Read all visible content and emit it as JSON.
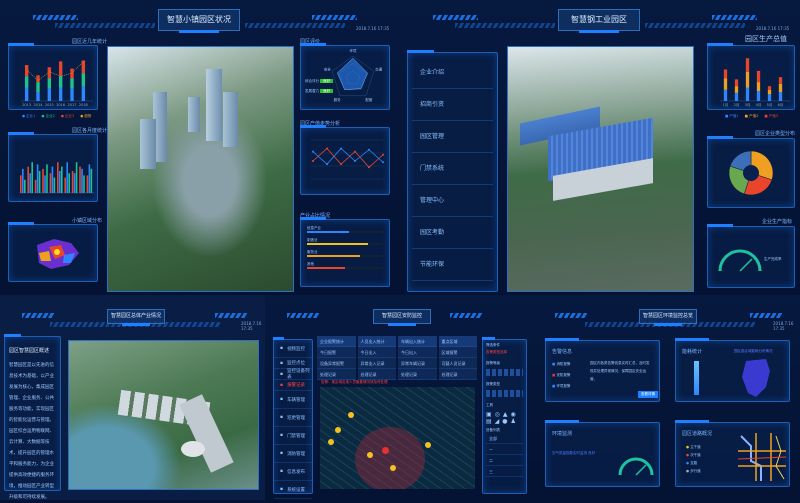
{
  "colors": {
    "accent": "#1e7fff",
    "background": "#041233",
    "blue": "#2e86ff",
    "green": "#1ec28b",
    "red": "#e8452c",
    "orange": "#f0a020"
  },
  "q1": {
    "title": "智慧小镇园区状况",
    "date": "2018.7.16 17:35",
    "chart1": {
      "title": "园区近几年统计",
      "legend": [
        "企业1",
        "企业2",
        "企业3",
        "趋势"
      ],
      "type": "bar",
      "categories": [
        "2013",
        "2014",
        "2015",
        "2016",
        "2017",
        "2018"
      ],
      "series": [
        {
          "name": "企业1",
          "values": [
            30,
            20,
            28,
            30,
            28,
            32
          ]
        },
        {
          "name": "企业2",
          "values": [
            25,
            22,
            22,
            26,
            22,
            30
          ]
        },
        {
          "name": "企业3",
          "values": [
            25,
            15,
            25,
            32,
            22,
            28
          ]
        }
      ],
      "line": [
        70,
        45,
        65,
        55,
        62,
        88
      ]
    },
    "chart2": {
      "title": "园区各月度统计",
      "type": "bar",
      "categories": [
        "1",
        "2",
        "3",
        "4",
        "5",
        "6",
        "7",
        "8",
        "9",
        "10"
      ],
      "series": [
        {
          "values": [
            40,
            60,
            30,
            55,
            45,
            70,
            35,
            50,
            60,
            40
          ]
        },
        {
          "values": [
            55,
            45,
            65,
            40,
            60,
            50,
            70,
            45,
            55,
            65
          ]
        },
        {
          "values": [
            30,
            70,
            50,
            65,
            35,
            60,
            45,
            70,
            40,
            55
          ]
        }
      ]
    },
    "map_title": "小镇区域分布",
    "radar": {
      "title": "园区评价",
      "labels": [
        "环境",
        "交通",
        "配套",
        "服务",
        "安全"
      ],
      "values": [
        0.9,
        0.7,
        0.6,
        0.65,
        0.75
      ],
      "badges": [
        {
          "label": "综合评分",
          "value": "良好"
        },
        {
          "label": "发展潜力",
          "value": "良好"
        }
      ]
    },
    "linechart": {
      "title": "园区产值走势分析",
      "series": [
        [
          40,
          60,
          35,
          55,
          30,
          50
        ],
        [
          55,
          35,
          60,
          40,
          58,
          38
        ]
      ]
    },
    "progress": {
      "title": "产业占比情况",
      "items": [
        {
          "label": "信息产业",
          "value": 0.55
        },
        {
          "label": "制造业",
          "value": 0.8
        },
        {
          "label": "服务业",
          "value": 0.7
        },
        {
          "label": "其他",
          "value": 0.5
        }
      ]
    }
  },
  "q2": {
    "title": "智慧钢工业园区",
    "date": "2018.7.16 17:35",
    "menu": [
      "企业介绍",
      "招商引资",
      "园区管理",
      "门禁系统",
      "管理中心",
      "园区考勤",
      "节能环保"
    ],
    "chart1": {
      "title": "园区生产总值",
      "type": "bar",
      "categories": [
        "1月",
        "2月",
        "3月",
        "4月",
        "5月",
        "6月"
      ],
      "legend": [
        "产值1",
        "产值2",
        "产值3"
      ],
      "series": [
        {
          "values": [
            25,
            18,
            30,
            22,
            15,
            20
          ]
        },
        {
          "values": [
            25,
            15,
            35,
            20,
            10,
            18
          ]
        },
        {
          "values": [
            20,
            15,
            30,
            25,
            8,
            15
          ]
        }
      ]
    },
    "pie": {
      "title": "园区企业类型分布",
      "type": "pie",
      "values": [
        30,
        25,
        25,
        20
      ],
      "colors": [
        "#f0a020",
        "#e8452c",
        "#6aa84f",
        "#3d6fb8"
      ]
    },
    "gauge": {
      "title": "企业生产指标",
      "label": "生产完成率",
      "value": 0.6
    }
  },
  "q3": {
    "title": "智慧园区总体产业情况",
    "date": "2018.7.16 17:35",
    "panel_title": "园区智慧园区概述",
    "paragraph": "智慧园区是以先进的信息技术为基础，以产业发展为核心，集成园区管理、企业服务、公共服务等功能，实现园区的智能化运营与管理。园区综合运用物联网、云计算、大数据等技术，提升园区的管理水平和服务能力，为企业提供高效便捷的服务环境，推动园区产业转型升级和可持续发展。"
  },
  "q4": {
    "title": "智慧园区安防监控",
    "side": [
      "视频监控",
      "监控点位",
      "监控设备列表",
      "报警记录",
      "车辆管理",
      "巡更管理",
      "门禁管理",
      "消防管理",
      "信息发布",
      "系统设置"
    ],
    "tables": [
      {
        "head": "企业报警统计",
        "rows": [
          "今日报警",
          "设备异常报警",
          "处理记录"
        ]
      },
      {
        "head": "人员出入统计",
        "rows": [
          "今日出入",
          "异常出入记录",
          "处理记录"
        ]
      },
      {
        "head": "车辆出入统计",
        "rows": [
          "今日出入",
          "异常车辆记录",
          "处理记录"
        ]
      },
      {
        "head": "重点区域",
        "rows": [
          "区域报警",
          "可疑人员记录",
          "处理记录"
        ]
      }
    ],
    "alert": "告警：某区域出现人员聚集情况请及时处理",
    "filter_title": "筛选条件",
    "filter_red": "告警类型选择",
    "filter_sections": [
      "报警等级",
      "报警类型",
      "工具",
      "设备列表"
    ],
    "list": [
      "全部",
      "一",
      "二",
      "三"
    ]
  },
  "q5": {
    "title": "智慧园区环境监控总览",
    "date": "2018.7.16 17:35",
    "p1": {
      "title": "告警信息",
      "rows": [
        "消防报警",
        "安防报警",
        "环境报警"
      ],
      "desc": "园区内各类告警信息实时汇总，及时发现并处理异常情况，保障园区安全运营。",
      "button": "查看详情"
    },
    "p2": {
      "title": "能耗统计",
      "map_label": "园区各区域能耗分布情况"
    },
    "p3": {
      "title": "环境监测",
      "label": "空气质量指数实时监测 良好",
      "value": 0.6
    },
    "p4": {
      "title": "园区道路概况",
      "legend": [
        "主干道",
        "次干道",
        "支路",
        "步行道"
      ]
    }
  }
}
